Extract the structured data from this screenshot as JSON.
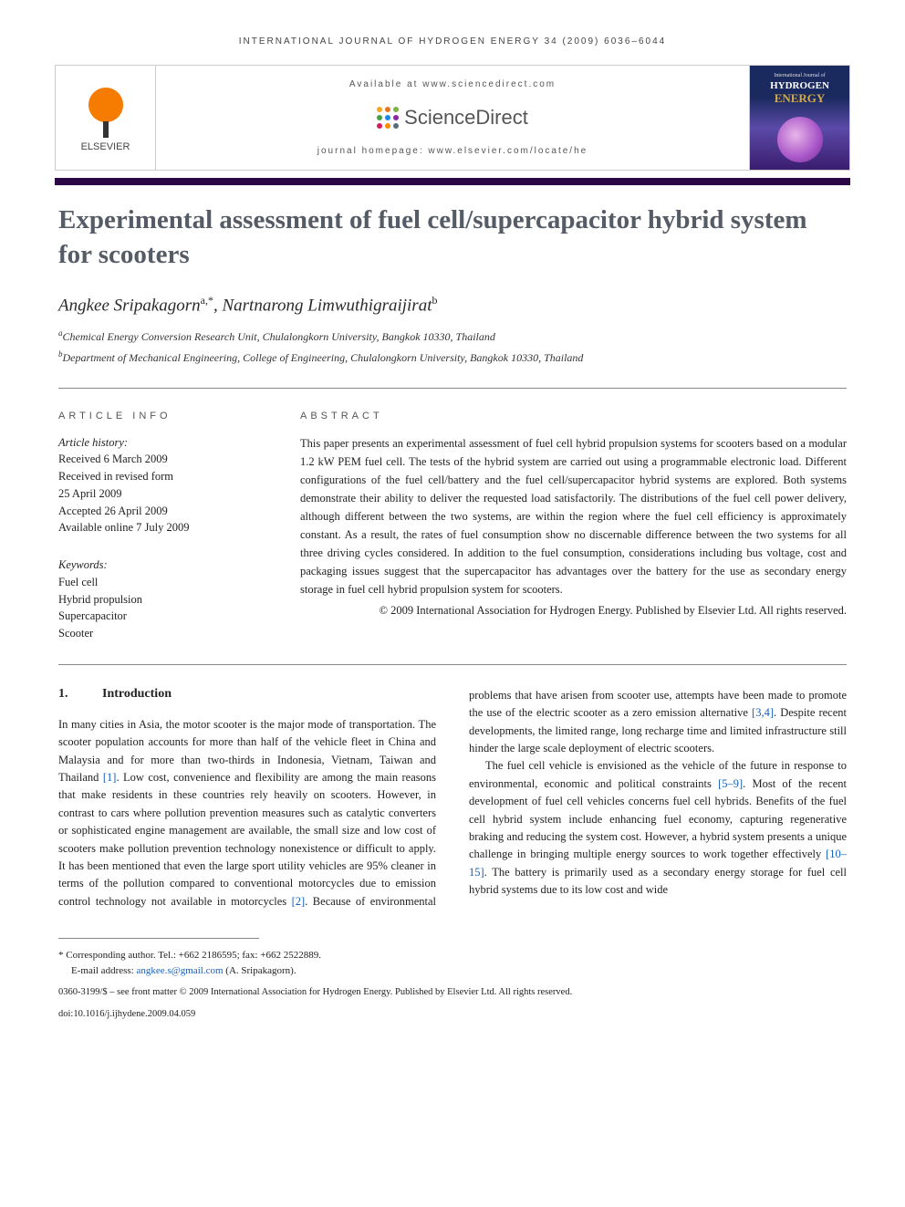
{
  "running_header": "INTERNATIONAL JOURNAL OF HYDROGEN ENERGY 34 (2009) 6036–6044",
  "available_at": "Available at www.sciencedirect.com",
  "sd_brand": "ScienceDirect",
  "homepage": "journal homepage: www.elsevier.com/locate/he",
  "elsevier": "ELSEVIER",
  "cover": {
    "top": "International Journal of",
    "line1": "HYDROGEN",
    "line2": "ENERGY"
  },
  "title": "Experimental assessment of fuel cell/supercapacitor hybrid system for scooters",
  "authors_html": "Angkee Sripakagorn<sup>a,*</sup>, Nartnarong Limwuthigraijirat<sup>b</sup>",
  "affiliations": [
    {
      "sup": "a",
      "text": "Chemical Energy Conversion Research Unit, Chulalongkorn University, Bangkok 10330, Thailand"
    },
    {
      "sup": "b",
      "text": "Department of Mechanical Engineering, College of Engineering, Chulalongkorn University, Bangkok 10330, Thailand"
    }
  ],
  "article_info_head": "ARTICLE INFO",
  "abstract_head": "ABSTRACT",
  "history_label": "Article history:",
  "history": [
    "Received 6 March 2009",
    "Received in revised form",
    "25 April 2009",
    "Accepted 26 April 2009",
    "Available online 7 July 2009"
  ],
  "keywords_label": "Keywords:",
  "keywords": [
    "Fuel cell",
    "Hybrid propulsion",
    "Supercapacitor",
    "Scooter"
  ],
  "abstract": "This paper presents an experimental assessment of fuel cell hybrid propulsion systems for scooters based on a modular 1.2 kW PEM fuel cell. The tests of the hybrid system are carried out using a programmable electronic load. Different configurations of the fuel cell/battery and the fuel cell/supercapacitor hybrid systems are explored. Both systems demonstrate their ability to deliver the requested load satisfactorily. The distributions of the fuel cell power delivery, although different between the two systems, are within the region where the fuel cell efficiency is approximately constant. As a result, the rates of fuel consumption show no discernable difference between the two systems for all three driving cycles considered. In addition to the fuel consumption, considerations including bus voltage, cost and packaging issues suggest that the supercapacitor has advantages over the battery for the use as secondary energy storage in fuel cell hybrid propulsion system for scooters.",
  "copyright": "© 2009 International Association for Hydrogen Energy. Published by Elsevier Ltd. All rights reserved.",
  "section1": {
    "num": "1.",
    "title": "Introduction"
  },
  "para1a": "In many cities in Asia, the motor scooter is the major mode of transportation. The scooter population accounts for more than half of the vehicle fleet in China and Malaysia and for more than two-thirds in Indonesia, Vietnam, Taiwan and Thailand ",
  "ref1": "[1]",
  "para1b": ". Low cost, convenience and flexibility are among the main reasons that make residents in these countries rely heavily on scooters. However, in contrast to cars where pollution prevention measures such as catalytic converters or sophisticated engine management are available, the small size and low cost of scooters make pollution prevention technology nonexistence or difficult to apply. It has been mentioned that even the large sport utility vehicles are 95% cleaner in terms of the pollution compared to conventional motorcycles due to emission control technology not available",
  "para2a": "in motorcycles ",
  "ref2": "[2]",
  "para2b": ". Because of environmental problems that have arisen from scooter use, attempts have been made to promote the use of the electric scooter as a zero emission alternative ",
  "ref34": "[3,4]",
  "para2c": ". Despite recent developments, the limited range, long recharge time and limited infrastructure still hinder the large scale deployment of electric scooters.",
  "para3a": "The fuel cell vehicle is envisioned as the vehicle of the future in response to environmental, economic and political constraints ",
  "ref59": "[5–9]",
  "para3b": ". Most of the recent development of fuel cell vehicles concerns fuel cell hybrids. Benefits of the fuel cell hybrid system include enhancing fuel economy, capturing regenerative braking and reducing the system cost. However, a hybrid system presents a unique challenge in bringing multiple energy sources to work together effectively ",
  "ref1015": "[10–15]",
  "para3c": ". The battery is primarily used as a secondary energy storage for fuel cell hybrid systems due to its low cost and wide",
  "corr_label": "* Corresponding author.",
  "corr_contact": " Tel.: +662 2186595; fax: +662 2522889.",
  "email_label": "E-mail address: ",
  "email": "angkee.s@gmail.com",
  "email_suffix": " (A. Sripakagorn).",
  "footer_line1": "0360-3199/$ – see front matter © 2009 International Association for Hydrogen Energy. Published by Elsevier Ltd. All rights reserved.",
  "footer_line2": "doi:10.1016/j.ijhydene.2009.04.059",
  "colors": {
    "sd_dots": [
      "#f5a623",
      "#e87722",
      "#7cb342",
      "#43a047",
      "#1e88e5",
      "#8e24aa",
      "#d81b60",
      "#fb8c00",
      "#546e7a"
    ]
  }
}
